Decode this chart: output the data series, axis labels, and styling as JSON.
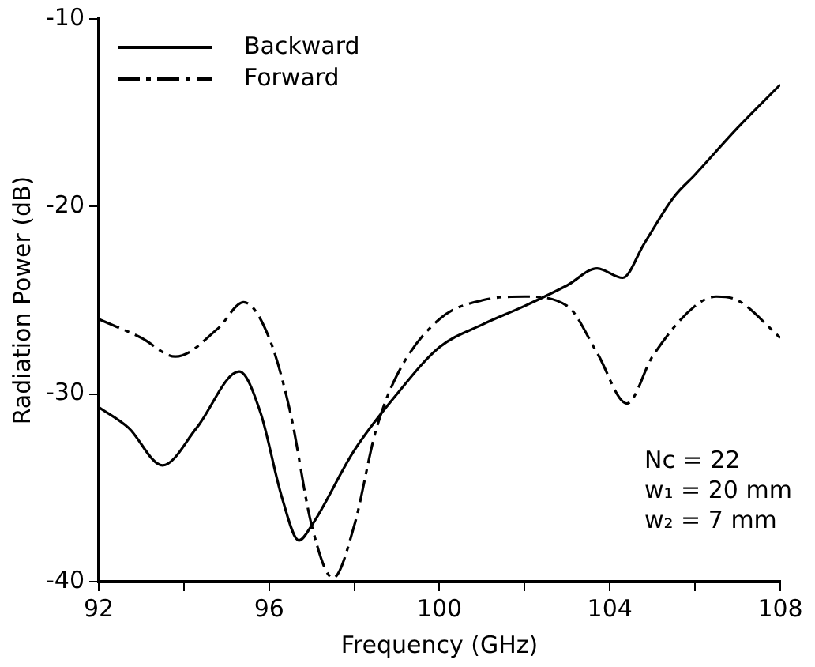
{
  "chart_data": {
    "type": "line",
    "xlabel": "Frequency (GHz)",
    "ylabel": "Radiation Power (dB)",
    "xlim": [
      92,
      108
    ],
    "xticks": [
      92,
      {
        "value": 94,
        "label": null
      },
      96,
      {
        "value": 98,
        "label": null
      },
      100,
      {
        "value": 102,
        "label": null
      },
      104,
      {
        "value": 106,
        "label": null
      },
      108
    ],
    "ylim": [
      -40,
      -10
    ],
    "yticks": [
      -40,
      -30,
      -20,
      -10
    ],
    "legend": "top left",
    "grid": false,
    "marker": "none",
    "annotations": [
      "Nc = 22",
      "w₁ = 20 mm",
      "w₂ = 7 mm"
    ],
    "series": [
      {
        "name": "Backward",
        "color": "#000000",
        "line_style": "solid",
        "x": [
          92,
          92.7,
          93.5,
          94.3,
          95.3,
          95.8,
          96.3,
          96.7,
          97,
          98,
          99,
          100,
          101,
          102,
          103,
          103.7,
          104.3,
          104.8,
          105.5,
          106,
          107,
          108
        ],
        "values": [
          -30.7,
          -31.8,
          -33.8,
          -31.8,
          -28.8,
          -31,
          -35.5,
          -37.8,
          -37,
          -33,
          -30,
          -27.5,
          -26.3,
          -25.3,
          -24.2,
          -23.3,
          -23.8,
          -22,
          -19.5,
          -18.3,
          -15.8,
          -13.5
        ]
      },
      {
        "name": "Forward",
        "color": "#000000",
        "line_style": "dashed",
        "x": [
          92,
          93,
          93.8,
          94.8,
          95.4,
          96,
          96.5,
          97,
          97.5,
          98,
          98.5,
          99,
          100,
          101,
          102,
          103,
          103.7,
          104.4,
          105,
          106,
          106.5,
          107,
          108
        ],
        "values": [
          -26,
          -27,
          -28,
          -26.5,
          -25.1,
          -27,
          -31,
          -37,
          -39.8,
          -37,
          -32,
          -29,
          -26,
          -25,
          -24.8,
          -25.3,
          -27.8,
          -30.5,
          -28,
          -25.3,
          -24.8,
          -25,
          -27
        ]
      }
    ]
  }
}
